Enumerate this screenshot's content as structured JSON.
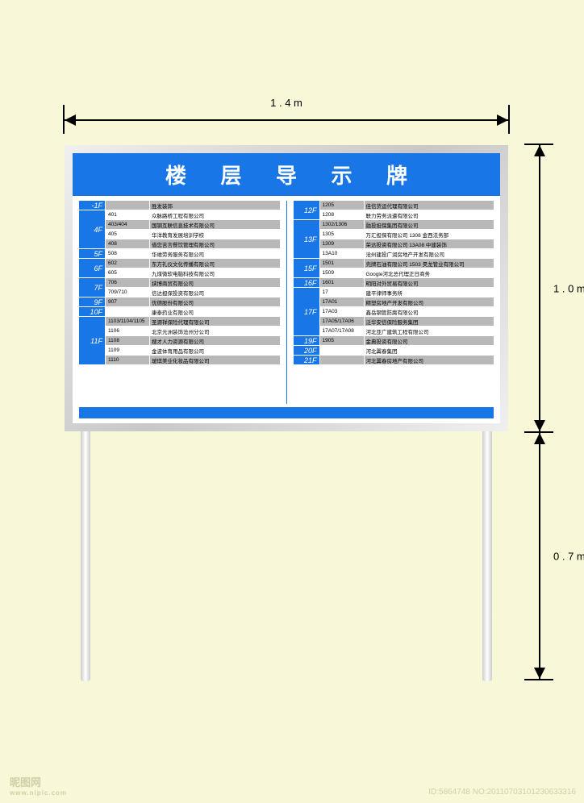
{
  "dimensions": {
    "width_label": "1 . 4 m",
    "height_upper_label": "1 . 0  m",
    "height_lower_label": "0 . 7  m"
  },
  "title": "楼 层 导 示 牌",
  "colors": {
    "page_bg": "#f8f8d8",
    "accent": "#1976e6",
    "stripe": "#b8b8b8",
    "frame_light": "#f0f0f0",
    "frame_dark": "#c8c8c8"
  },
  "left_floors": [
    {
      "floor": "-1F",
      "rows": [
        {
          "room": "",
          "tenant": "胜发装饰"
        }
      ]
    },
    {
      "floor": "4F",
      "rows": [
        {
          "room": "401",
          "tenant": "众脉路桥工程有限公司"
        },
        {
          "room": "403/404",
          "tenant": "国钢互联信息技术有限公司"
        },
        {
          "room": "405",
          "tenant": "华洋教育发展培训学校"
        },
        {
          "room": "408",
          "tenant": "借您吉言餐饮管理有限公司"
        }
      ]
    },
    {
      "floor": "5F",
      "rows": [
        {
          "room": "508",
          "tenant": "华维劳务服务有限公司"
        }
      ]
    },
    {
      "floor": "6F",
      "rows": [
        {
          "room": "602",
          "tenant": "东方礼仪文化传播有限公司"
        },
        {
          "room": "605",
          "tenant": "九煤微软电脑科技有限公司"
        }
      ]
    },
    {
      "floor": "7F",
      "rows": [
        {
          "room": "706",
          "tenant": "挟博商贸有限公司"
        },
        {
          "room": "709/710",
          "tenant": "信达担保投资有限公司"
        }
      ]
    },
    {
      "floor": "9F",
      "rows": [
        {
          "room": "907",
          "tenant": "优德股份有限公司"
        }
      ]
    },
    {
      "floor": "10F",
      "rows": [
        {
          "room": "",
          "tenant": "康泰药业有限公司"
        }
      ]
    },
    {
      "floor": "11F",
      "rows": [
        {
          "room": "1103/1104/1105",
          "tenant": "圣源祥保险代理有限公司"
        },
        {
          "room": "1106",
          "tenant": "北京元洲装饰沧州分公司"
        },
        {
          "room": "1108",
          "tenant": "搜才人力资源有限公司"
        },
        {
          "room": "1109",
          "tenant": "金波体育用品有限公司"
        },
        {
          "room": "1110",
          "tenant": "瑷琪美业化妆品有限公司"
        }
      ]
    }
  ],
  "right_floors": [
    {
      "floor": "12F",
      "rows": [
        {
          "room": "1205",
          "tenant": "佳信货运代理有限公司"
        },
        {
          "room": "1208",
          "tenant": "联力劳务派遣有限公司"
        }
      ]
    },
    {
      "floor": "13F",
      "rows": [
        {
          "room": "1302/1306",
          "tenant": "融投担保集团有限公司"
        },
        {
          "room": "1305",
          "tenant": "万汇担保有限公司   1308   金西法务部"
        },
        {
          "room": "1309",
          "tenant": "荣达投资有限公司   13A08  中建装饰"
        },
        {
          "room": "13A10",
          "tenant": "沧州建投广润房地产开发有限公司"
        }
      ]
    },
    {
      "floor": "15F",
      "rows": [
        {
          "room": "1501",
          "tenant": "壳牌石油有限公司   1503   昊龙管业有限公司"
        },
        {
          "room": "1509",
          "tenant": "Google河北总代理正日商务"
        }
      ]
    },
    {
      "floor": "16F",
      "rows": [
        {
          "room": "1601",
          "tenant": "明阳对外贸易有限公司"
        }
      ]
    },
    {
      "floor": "17F",
      "rows": [
        {
          "room": "17",
          "tenant": "建平律师事务所"
        },
        {
          "room": "17A01",
          "tenant": "精塑房地产开发有限公司"
        },
        {
          "room": "17A03",
          "tenant": "鑫岳钢管防腐有限公司"
        },
        {
          "room": "17A05/17A06",
          "tenant": "泛华安信保险服务集团"
        },
        {
          "room": "17A07/17A08",
          "tenant": "河北亚广建筑工程有限公司"
        }
      ]
    },
    {
      "floor": "19F",
      "rows": [
        {
          "room": "1905",
          "tenant": "金典投资有限公司"
        }
      ]
    },
    {
      "floor": "20F",
      "rows": [
        {
          "room": "",
          "tenant": "河北翼春集团"
        }
      ]
    },
    {
      "floor": "21F",
      "rows": [
        {
          "room": "",
          "tenant": "河北翼春房地产有限公司"
        }
      ]
    }
  ],
  "watermark": {
    "logo": "昵图网",
    "logo_sub": "www.nipic.com",
    "id": "ID:5864748 NO:20110703101230633316"
  }
}
